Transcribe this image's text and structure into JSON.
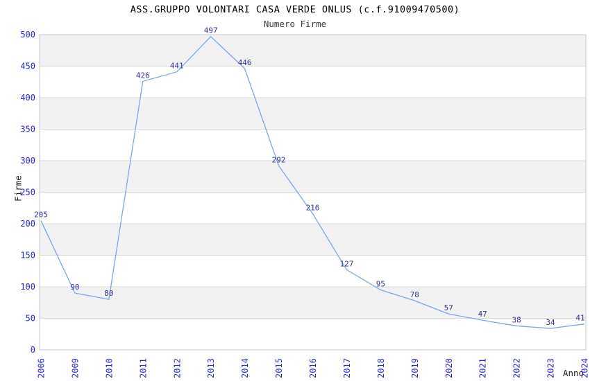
{
  "chart_data": {
    "type": "line",
    "title": "ASS.GRUPPO VOLONTARI CASA VERDE ONLUS (c.f.91009470500)",
    "subtitle": "Numero Firme",
    "xlabel": "Anno",
    "ylabel": "Firme",
    "categories": [
      "2006",
      "2009",
      "2010",
      "2011",
      "2012",
      "2013",
      "2014",
      "2015",
      "2016",
      "2017",
      "2018",
      "2019",
      "2020",
      "2021",
      "2022",
      "2023",
      "2024"
    ],
    "values": [
      205,
      90,
      80,
      426,
      441,
      497,
      446,
      292,
      216,
      127,
      95,
      78,
      57,
      47,
      38,
      34,
      41
    ],
    "yticks": [
      0,
      50,
      100,
      150,
      200,
      250,
      300,
      350,
      400,
      450,
      500
    ],
    "ylim": [
      0,
      500
    ],
    "grid": "horizontal gridlines every 50 with alternating gray/white bands",
    "legend": "none",
    "colors": {
      "line": "#7AA6E8",
      "value_label": "#333399",
      "tick_label": "#2828CF",
      "band_gray": "#F2F2F2",
      "band_white": "#FFFFFF",
      "gridline": "#DADADA",
      "plot_border": "#C9C9C9",
      "title": "#000000",
      "axis_title": "#1A1A1A"
    }
  }
}
